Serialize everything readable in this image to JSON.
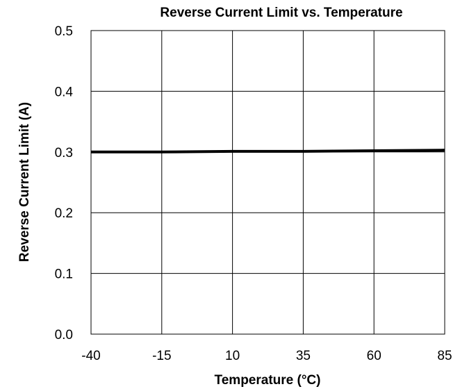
{
  "chart_data": {
    "type": "line",
    "title": "Reverse Current Limit vs. Temperature",
    "xlabel": "Temperature (°C)",
    "ylabel": "Reverse Current Limit (A)",
    "xlim": [
      -40,
      85
    ],
    "ylim": [
      0.0,
      0.5
    ],
    "x_ticks": [
      -40,
      -15,
      10,
      35,
      60,
      85
    ],
    "y_ticks": [
      "0.0",
      "0.1",
      "0.2",
      "0.3",
      "0.4",
      "0.5"
    ],
    "grid": true,
    "legend": "none",
    "series": [
      {
        "x": [
          -40,
          -15,
          10,
          35,
          60,
          85
        ],
        "y": [
          0.3,
          0.3,
          0.301,
          0.301,
          0.302,
          0.303
        ],
        "color": "#000000"
      }
    ]
  }
}
